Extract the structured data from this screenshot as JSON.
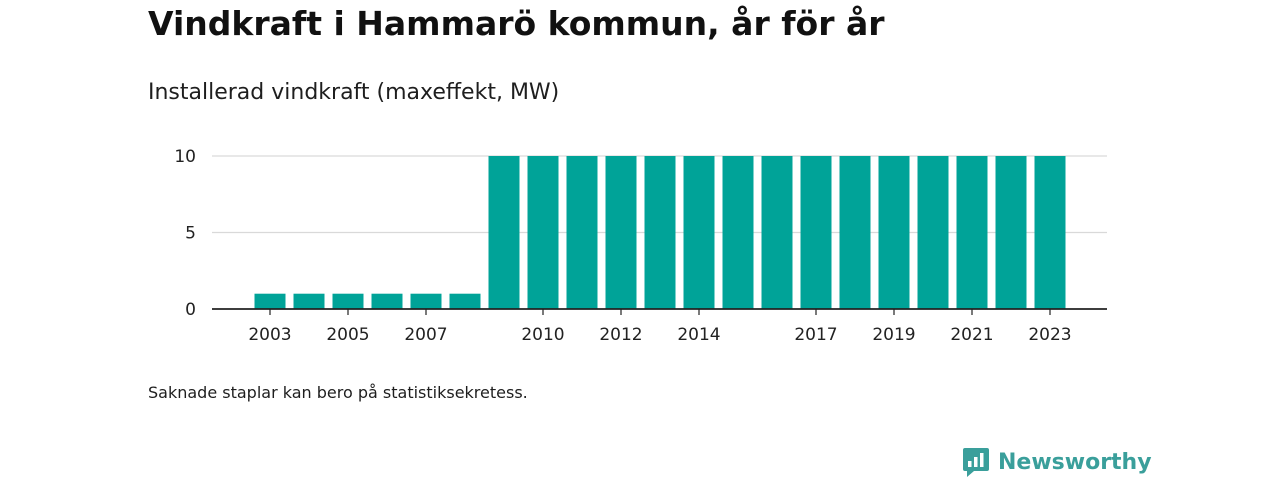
{
  "title": "Vindkraft i Hammarö kommun, år för år",
  "subtitle": "Installerad vindkraft (maxeffekt, MW)",
  "note": "Saknade staplar kan bero på statistiksekretess.",
  "brand": {
    "name": "Newsworthy",
    "icon": "newsworthy-logo-icon",
    "color": "#3a9f9b"
  },
  "colors": {
    "bar": "#00a398",
    "grid": "#d9d9d9",
    "axis": "#222222"
  },
  "chart_data": {
    "type": "bar",
    "title": "Installerad vindkraft (maxeffekt, MW)",
    "xlabel": "",
    "ylabel": "",
    "ylim": [
      0,
      10
    ],
    "yticks": [
      0,
      5,
      10
    ],
    "grid": true,
    "categories": [
      "2003",
      "2004",
      "2005",
      "2006",
      "2007",
      "2008",
      "2009",
      "2010",
      "2011",
      "2012",
      "2013",
      "2014",
      "2015",
      "2016",
      "2017",
      "2018",
      "2019",
      "2020",
      "2021",
      "2022",
      "2023"
    ],
    "values": [
      1,
      1,
      1,
      1,
      1,
      1,
      10,
      10,
      10,
      10,
      10,
      10,
      10,
      10,
      10,
      10,
      10,
      10,
      10,
      10,
      10
    ],
    "xtick_labels": [
      "2003",
      "2005",
      "2007",
      "2010",
      "2012",
      "2014",
      "2017",
      "2019",
      "2021",
      "2023"
    ]
  }
}
